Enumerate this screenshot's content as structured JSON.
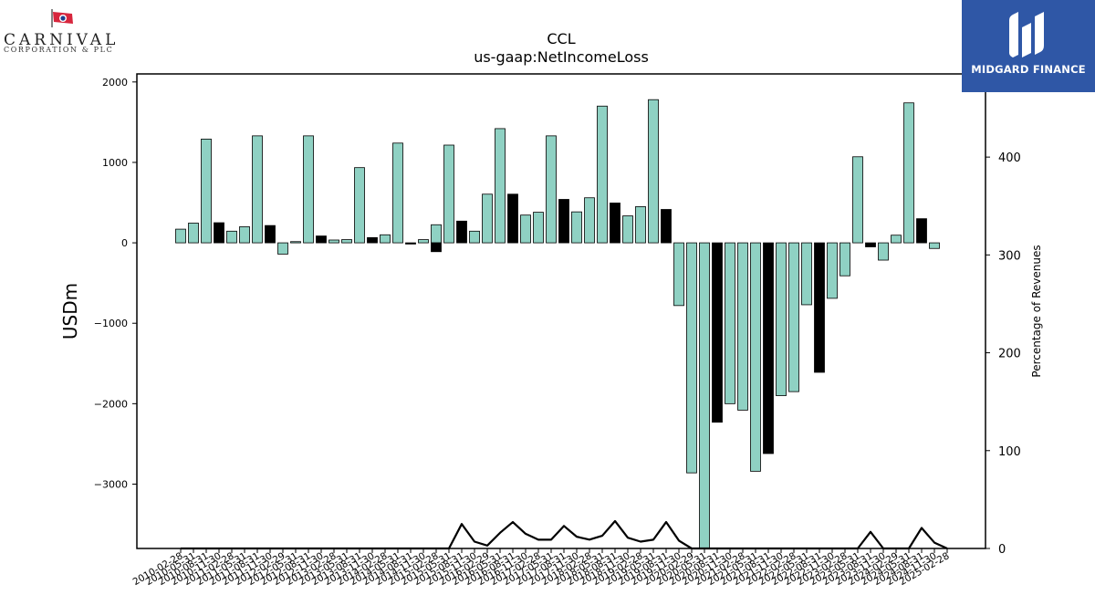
{
  "branding": {
    "company_name": "CARNIVAL",
    "company_subtitle": "CORPORATION & PLC",
    "publisher": "MIDGARD FINANCE"
  },
  "colors": {
    "quarter_bar": "#8fd1c3",
    "annual_bar": "#000000",
    "line": "#000000",
    "publisher_bg": "#2f57a6"
  },
  "chart_data": {
    "type": "bar",
    "title": "CCL",
    "subtitle": "us-gaap:NetIncomeLoss",
    "ylabel": "USDm",
    "y2label": "Percentage of Revenues",
    "ylim": [
      -3800,
      2100
    ],
    "y2lim": [
      0,
      485
    ],
    "yticks": [
      2000,
      1000,
      0,
      -1000,
      -2000,
      -3000
    ],
    "ytick_labels": [
      "2000",
      "1000",
      "0",
      "−1000",
      "−2000",
      "−3000"
    ],
    "y2ticks": [
      400,
      300,
      200,
      100,
      0
    ],
    "y2tick_labels": [
      "400",
      "300",
      "200",
      "100",
      "0"
    ],
    "grid": false,
    "x_labels": [
      "2010-02-28",
      "2010-05-31",
      "2010-08-31",
      "2010-11-30",
      "2011-02-28",
      "2011-05-31",
      "2011-08-31",
      "2011-11-30",
      "2012-02-29",
      "2012-05-31",
      "2012-08-31",
      "2012-11-30",
      "2013-02-28",
      "2013-05-31",
      "2013-08-31",
      "2013-11-30",
      "2014-02-28",
      "2014-05-31",
      "2014-08-31",
      "2014-11-30",
      "2015-02-28",
      "2015-05-31",
      "2015-08-31",
      "2015-11-30",
      "2016-02-29",
      "2016-05-31",
      "2016-08-31",
      "2016-11-30",
      "2017-02-28",
      "2017-05-31",
      "2017-08-31",
      "2017-11-30",
      "2018-02-28",
      "2018-05-31",
      "2018-08-31",
      "2018-11-30",
      "2019-02-28",
      "2019-05-31",
      "2019-08-31",
      "2019-11-30",
      "2020-02-29",
      "2020-05-31",
      "2020-08-31",
      "2020-11-30",
      "2021-02-28",
      "2021-05-31",
      "2021-08-31",
      "2021-11-30",
      "2022-02-28",
      "2022-05-31",
      "2022-08-31",
      "2022-11-30",
      "2023-02-28",
      "2023-05-31",
      "2023-08-31",
      "2023-11-30",
      "2024-02-29",
      "2024-05-31",
      "2024-08-31",
      "2024-11-30",
      "2025-02-28"
    ],
    "series": [
      {
        "kind": "quarter",
        "values": [
          170,
          245,
          1290,
          null,
          145,
          200,
          1330,
          null,
          -140,
          15,
          1330,
          null,
          35,
          40,
          935,
          null,
          100,
          1240,
          null,
          40,
          225,
          1215,
          null,
          145,
          605,
          1420,
          null,
          345,
          380,
          1330,
          null,
          385,
          560,
          1700,
          null,
          335,
          450,
          1780,
          null,
          -780,
          -2860,
          -3800,
          null,
          -2000,
          -2080,
          -2840,
          null,
          -1900,
          -1850,
          -770,
          null,
          -690,
          -410,
          1070,
          null,
          -215,
          95,
          1740,
          null,
          -70,
          null
        ]
      },
      {
        "kind": "annual",
        "values": [
          null,
          null,
          null,
          250,
          null,
          null,
          null,
          215,
          null,
          null,
          null,
          85,
          null,
          null,
          null,
          65,
          null,
          null,
          -15,
          null,
          -110,
          null,
          270,
          null,
          null,
          null,
          605,
          null,
          null,
          null,
          540,
          null,
          null,
          null,
          495,
          null,
          null,
          null,
          415,
          null,
          null,
          null,
          -2230,
          null,
          null,
          null,
          -2620,
          null,
          null,
          null,
          -1610,
          null,
          null,
          null,
          -50,
          null,
          null,
          null,
          300,
          null,
          null
        ]
      },
      {
        "kind": "line",
        "name": "Percentage of Revenues",
        "values": [
          0,
          0,
          0,
          0,
          0,
          0,
          0,
          0,
          0,
          0,
          0,
          0,
          0,
          0,
          0,
          0,
          0,
          0,
          0,
          0,
          0,
          0,
          25,
          7,
          3,
          16,
          27,
          15,
          9,
          9,
          23,
          12,
          9,
          13,
          28,
          11,
          7,
          9,
          27,
          8,
          0,
          0,
          0,
          0,
          0,
          0,
          0,
          0,
          0,
          0,
          0,
          0,
          0,
          0,
          17,
          0,
          0,
          0,
          21,
          6,
          0
        ]
      }
    ]
  }
}
